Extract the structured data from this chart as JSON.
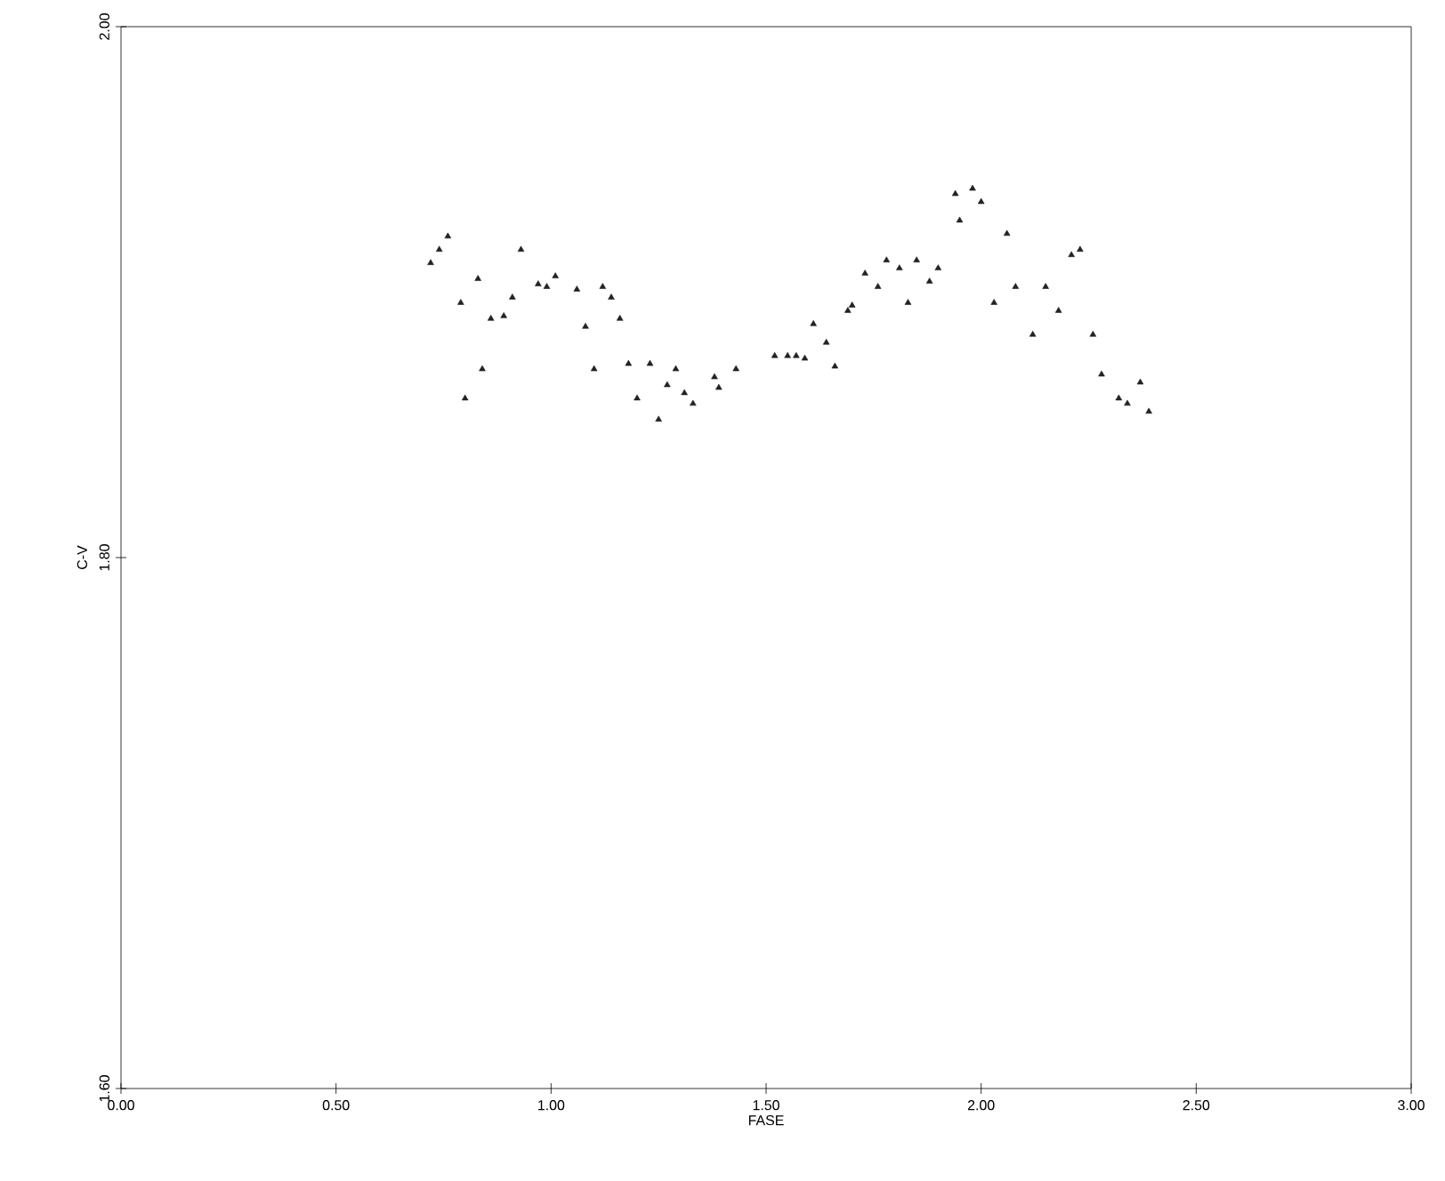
{
  "chart_data": {
    "type": "scatter",
    "xlabel": "FASE",
    "ylabel": "C-V",
    "marker": "triangle",
    "grid": false,
    "xlim": [
      0,
      3
    ],
    "ylim": [
      1.6,
      2.0
    ],
    "xticks": [
      {
        "value": 0,
        "label": "0.00"
      },
      {
        "value": 0.5,
        "label": "0.50"
      },
      {
        "value": 1,
        "label": "1.00"
      },
      {
        "value": 1.5,
        "label": "1.50"
      },
      {
        "value": 2,
        "label": "2.00"
      },
      {
        "value": 2.5,
        "label": "2.50"
      },
      {
        "value": 3,
        "label": "3.00"
      }
    ],
    "yticks": [
      {
        "value": 1.6,
        "label": "1.60"
      },
      {
        "value": 1.8,
        "label": "1.80"
      },
      {
        "value": 2.0,
        "label": "2.00"
      }
    ],
    "series": [
      {
        "color": "#222222",
        "x": [
          0.76,
          0.74,
          0.72,
          0.93,
          0.83,
          0.79,
          0.86,
          0.89,
          0.91,
          0.97,
          1.01,
          0.99,
          1.06,
          1.12,
          1.14,
          1.08,
          1.16,
          0.84,
          0.8,
          1.1,
          1.18,
          1.23,
          1.2,
          1.25,
          1.29,
          1.27,
          1.31,
          1.33,
          1.38,
          1.39,
          1.43,
          1.55,
          1.52,
          1.94,
          1.98,
          2.0,
          1.95,
          2.06,
          2.23,
          2.21,
          1.78,
          1.81,
          1.85,
          1.9,
          1.88,
          1.73,
          1.76,
          1.7,
          1.69,
          1.83,
          2.03,
          2.08,
          2.15,
          2.18,
          2.12,
          2.26,
          1.61,
          1.64,
          1.66,
          1.57,
          1.59,
          2.28,
          2.37,
          2.32,
          2.34,
          2.39
        ],
        "values": [
          1.921,
          1.916,
          1.911,
          1.916,
          1.905,
          1.896,
          1.89,
          1.891,
          1.898,
          1.903,
          1.906,
          1.902,
          1.901,
          1.902,
          1.898,
          1.887,
          1.89,
          1.871,
          1.86,
          1.871,
          1.873,
          1.873,
          1.86,
          1.852,
          1.871,
          1.865,
          1.862,
          1.858,
          1.868,
          1.864,
          1.871,
          1.876,
          1.876,
          1.937,
          1.939,
          1.934,
          1.927,
          1.922,
          1.916,
          1.914,
          1.912,
          1.909,
          1.912,
          1.909,
          1.904,
          1.907,
          1.902,
          1.895,
          1.893,
          1.896,
          1.896,
          1.902,
          1.902,
          1.893,
          1.884,
          1.884,
          1.888,
          1.881,
          1.872,
          1.876,
          1.875,
          1.869,
          1.866,
          1.86,
          1.858,
          1.855
        ]
      }
    ]
  }
}
